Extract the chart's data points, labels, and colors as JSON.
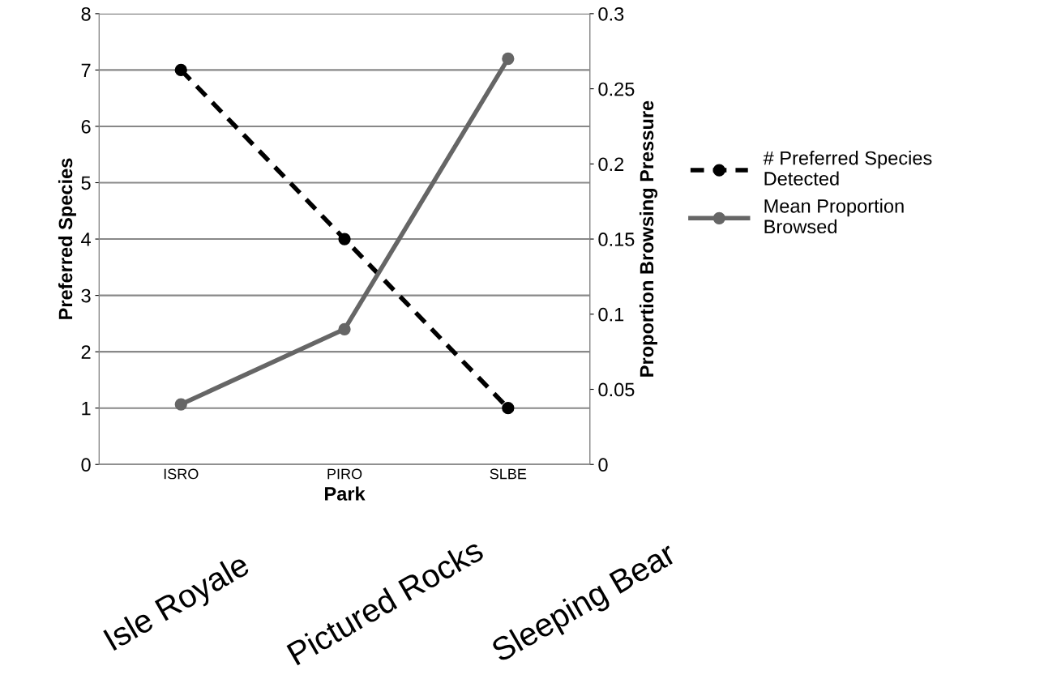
{
  "chart_data": {
    "type": "line",
    "categories": [
      "ISRO",
      "PIRO",
      "SLBE"
    ],
    "xlabel": "Park",
    "ylabel": "Preferred Species",
    "y2label": "Proportion Browsing Pressure",
    "series": [
      {
        "name": "# Preferred Species\nDetected",
        "color": "#000000",
        "values": [
          7,
          4,
          1
        ],
        "line_style": "dashed"
      },
      {
        "name": "Mean Proportion\nBrowsed",
        "color": "#666666",
        "values": [
          0.04,
          0.09,
          0.27
        ],
        "axis": "y2",
        "line_style": "solid"
      }
    ],
    "ylim": [
      0,
      8
    ],
    "yticks": [
      0,
      1,
      2,
      3,
      4,
      5,
      6,
      7,
      8
    ],
    "y2lim": [
      0,
      0.3
    ],
    "y2ticks": [
      0,
      0.05,
      0.1,
      0.15,
      0.2,
      0.25,
      0.3
    ],
    "grid": "y",
    "legend": "right",
    "marker": "circle",
    "annotations": [
      "Isle Royale",
      "Pictured Rocks",
      "Sleeping Bear"
    ]
  }
}
